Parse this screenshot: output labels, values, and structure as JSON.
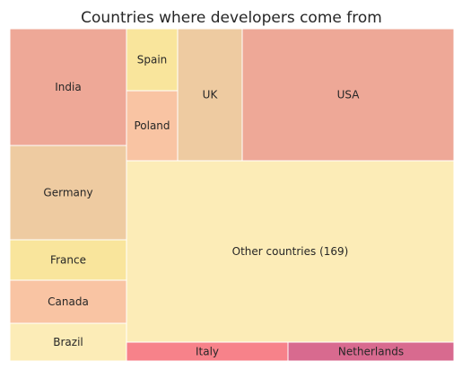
{
  "chart_data": {
    "type": "treemap",
    "title": "Countries where developers come from",
    "tiles": [
      {
        "label": "India",
        "color": "#eea897"
      },
      {
        "label": "Germany",
        "color": "#eecba1"
      },
      {
        "label": "France",
        "color": "#f9e59c"
      },
      {
        "label": "Canada",
        "color": "#f9c4a3"
      },
      {
        "label": "Brazil",
        "color": "#fcecb7"
      },
      {
        "label": "Spain",
        "color": "#f9e59c"
      },
      {
        "label": "Poland",
        "color": "#f9c4a3"
      },
      {
        "label": "UK",
        "color": "#eecba1"
      },
      {
        "label": "USA",
        "color": "#eea897"
      },
      {
        "label": "Other countries (169)",
        "color": "#fcecb7"
      },
      {
        "label": "Italy",
        "color": "#f7828a"
      },
      {
        "label": "Netherlands",
        "color": "#d86a8f"
      }
    ]
  }
}
